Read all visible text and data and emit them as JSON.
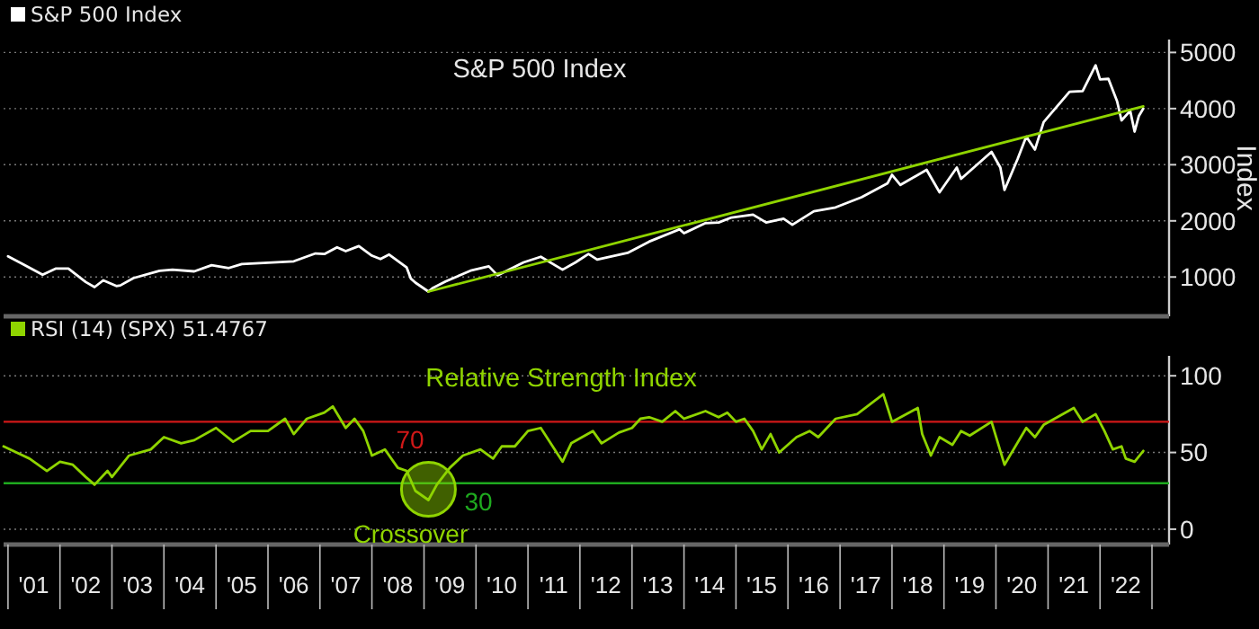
{
  "chart_data": [
    {
      "type": "line",
      "title": "S&P 500 Index",
      "ylabel": "Index",
      "legend": "top left",
      "grid": "y",
      "tick_labels": "y",
      "xlim": [
        "2000-12",
        "2023-05"
      ],
      "ylim": [
        300,
        5230
      ],
      "yticks": [
        1000,
        2000,
        3000,
        4000,
        5000
      ],
      "series": [
        {
          "name": "S&P 500 Index",
          "color": "#ffffff",
          "x": [
            "2001-01",
            "2001-04",
            "2001-09",
            "2001-12",
            "2002-03",
            "2002-07",
            "2002-09",
            "2002-11",
            "2003-02",
            "2003-03",
            "2003-06",
            "2003-12",
            "2004-03",
            "2004-08",
            "2004-12",
            "2005-04",
            "2005-07",
            "2005-12",
            "2006-05",
            "2006-07",
            "2006-12",
            "2007-02",
            "2007-05",
            "2007-07",
            "2007-10",
            "2008-01",
            "2008-03",
            "2008-05",
            "2008-09",
            "2008-10",
            "2008-11",
            "2009-02",
            "2009-03",
            "2009-06",
            "2009-12",
            "2010-04",
            "2010-06",
            "2010-12",
            "2011-04",
            "2011-09",
            "2011-12",
            "2012-03",
            "2012-05",
            "2012-12",
            "2013-05",
            "2013-12",
            "2014-01",
            "2014-06",
            "2014-09",
            "2014-12",
            "2015-05",
            "2015-08",
            "2015-12",
            "2016-02",
            "2016-07",
            "2016-12",
            "2017-06",
            "2017-12",
            "2018-01",
            "2018-03",
            "2018-09",
            "2018-12",
            "2019-04",
            "2019-05",
            "2019-12",
            "2020-02",
            "2020-03",
            "2020-06",
            "2020-08",
            "2020-10",
            "2020-12",
            "2021-06",
            "2021-09",
            "2021-12",
            "2022-01",
            "2022-03",
            "2022-05",
            "2022-06",
            "2022-08",
            "2022-09",
            "2022-10",
            "2022-11"
          ],
          "values": [
            1370,
            1250,
            1040,
            1150,
            1150,
            910,
            820,
            940,
            840,
            850,
            980,
            1110,
            1130,
            1100,
            1210,
            1160,
            1230,
            1250,
            1270,
            1280,
            1420,
            1410,
            1530,
            1460,
            1550,
            1380,
            1320,
            1400,
            1170,
            970,
            900,
            740,
            800,
            920,
            1120,
            1190,
            1030,
            1260,
            1360,
            1130,
            1260,
            1410,
            1310,
            1430,
            1630,
            1850,
            1780,
            1960,
            1970,
            2060,
            2110,
            1970,
            2040,
            1930,
            2170,
            2240,
            2420,
            2670,
            2820,
            2640,
            2910,
            2510,
            2950,
            2750,
            3230,
            2950,
            2550,
            3100,
            3500,
            3270,
            3760,
            4300,
            4310,
            4770,
            4520,
            4530,
            4130,
            3790,
            3960,
            3590,
            3870,
            4000
          ]
        },
        {
          "type": "line",
          "color": "#8fd400",
          "x": [
            "2009-02",
            "2022-11"
          ],
          "values": [
            740,
            4040
          ]
        }
      ]
    },
    {
      "type": "line",
      "title": "Relative Strength Index",
      "legend": "top left",
      "grid": "y",
      "xlim": [
        "2000-12",
        "2023-05"
      ],
      "ylim": [
        -10,
        113
      ],
      "yticks": [
        0,
        50,
        100
      ],
      "xticks": [
        {
          "value": "2001-01",
          "label": null
        },
        {
          "value": "2001-07",
          "label": "'01"
        },
        {
          "value": "2002-01",
          "label": null
        },
        {
          "value": "2002-07",
          "label": "'02"
        },
        {
          "value": "2003-01",
          "label": null
        },
        {
          "value": "2003-07",
          "label": "'03"
        },
        {
          "value": "2004-01",
          "label": null
        },
        {
          "value": "2004-07",
          "label": "'04"
        },
        {
          "value": "2005-01",
          "label": null
        },
        {
          "value": "2005-07",
          "label": "'05"
        },
        {
          "value": "2006-01",
          "label": null
        },
        {
          "value": "2006-07",
          "label": "'06"
        },
        {
          "value": "2007-01",
          "label": null
        },
        {
          "value": "2007-07",
          "label": "'07"
        },
        {
          "value": "2008-01",
          "label": null
        },
        {
          "value": "2008-07",
          "label": "'08"
        },
        {
          "value": "2009-01",
          "label": null
        },
        {
          "value": "2009-07",
          "label": "'09"
        },
        {
          "value": "2010-01",
          "label": null
        },
        {
          "value": "2010-07",
          "label": "'10"
        },
        {
          "value": "2011-01",
          "label": null
        },
        {
          "value": "2011-07",
          "label": "'11"
        },
        {
          "value": "2012-01",
          "label": null
        },
        {
          "value": "2012-07",
          "label": "'12"
        },
        {
          "value": "2013-01",
          "label": null
        },
        {
          "value": "2013-07",
          "label": "'13"
        },
        {
          "value": "2014-01",
          "label": null
        },
        {
          "value": "2014-07",
          "label": "'14"
        },
        {
          "value": "2015-01",
          "label": null
        },
        {
          "value": "2015-07",
          "label": "'15"
        },
        {
          "value": "2016-01",
          "label": null
        },
        {
          "value": "2016-07",
          "label": "'16"
        },
        {
          "value": "2017-01",
          "label": null
        },
        {
          "value": "2017-07",
          "label": "'17"
        },
        {
          "value": "2018-01",
          "label": null
        },
        {
          "value": "2018-07",
          "label": "'18"
        },
        {
          "value": "2019-01",
          "label": null
        },
        {
          "value": "2019-07",
          "label": "'19"
        },
        {
          "value": "2020-01",
          "label": null
        },
        {
          "value": "2020-07",
          "label": "'20"
        },
        {
          "value": "2021-01",
          "label": null
        },
        {
          "value": "2021-07",
          "label": "'21"
        },
        {
          "value": "2022-01",
          "label": null
        },
        {
          "value": "2022-07",
          "label": "'22"
        },
        {
          "value": "2023-01",
          "label": null
        }
      ],
      "ref_lines": [
        {
          "axis": "y",
          "value": 70,
          "label": "70",
          "color": "#d01818"
        },
        {
          "axis": "y",
          "value": 30,
          "label": "30",
          "color": "#1faa1f"
        }
      ],
      "annotations": [
        {
          "text": "Crossover",
          "x": "2009-02",
          "y": 19
        }
      ],
      "series": [
        {
          "name": "RSI (14) (SPX) 51.4767",
          "color": "#8fd400",
          "x": [
            "2000-12",
            "2001-03",
            "2001-06",
            "2001-10",
            "2002-01",
            "2002-04",
            "2002-07",
            "2002-09",
            "2002-12",
            "2003-01",
            "2003-05",
            "2003-10",
            "2004-01",
            "2004-05",
            "2004-08",
            "2005-01",
            "2005-05",
            "2005-09",
            "2006-01",
            "2006-05",
            "2006-07",
            "2006-10",
            "2007-02",
            "2007-04",
            "2007-07",
            "2007-09",
            "2007-11",
            "2008-01",
            "2008-04",
            "2008-07",
            "2008-09",
            "2008-11",
            "2009-02",
            "2009-04",
            "2009-07",
            "2009-10",
            "2010-02",
            "2010-05",
            "2010-07",
            "2010-10",
            "2011-01",
            "2011-04",
            "2011-09",
            "2011-11",
            "2012-04",
            "2012-06",
            "2012-10",
            "2013-01",
            "2013-03",
            "2013-05",
            "2013-08",
            "2013-11",
            "2014-01",
            "2014-06",
            "2014-09",
            "2014-11",
            "2015-01",
            "2015-03",
            "2015-05",
            "2015-07",
            "2015-09",
            "2015-11",
            "2016-03",
            "2016-06",
            "2016-08",
            "2016-12",
            "2017-05",
            "2017-11",
            "2018-01",
            "2018-07",
            "2018-08",
            "2018-10",
            "2018-12",
            "2019-03",
            "2019-05",
            "2019-07",
            "2019-12",
            "2020-03",
            "2020-08",
            "2020-10",
            "2020-12",
            "2021-07",
            "2021-09",
            "2021-12",
            "2022-02",
            "2022-04",
            "2022-06",
            "2022-07",
            "2022-09",
            "2022-11"
          ],
          "values": [
            54,
            50,
            46,
            38,
            44,
            42,
            34,
            29,
            38,
            34,
            48,
            52,
            60,
            56,
            58,
            66,
            57,
            64,
            64,
            72,
            62,
            72,
            76,
            80,
            66,
            72,
            64,
            48,
            52,
            40,
            38,
            25,
            19,
            29,
            40,
            48,
            52,
            46,
            54,
            54,
            64,
            66,
            44,
            56,
            64,
            56,
            63,
            66,
            72,
            73,
            70,
            77,
            72,
            77,
            73,
            76,
            70,
            72,
            64,
            52,
            62,
            50,
            60,
            64,
            60,
            72,
            75,
            88,
            70,
            79,
            62,
            48,
            60,
            55,
            64,
            61,
            70,
            42,
            66,
            60,
            68,
            79,
            70,
            75,
            64,
            52,
            54,
            46,
            44,
            51
          ]
        }
      ]
    }
  ]
}
